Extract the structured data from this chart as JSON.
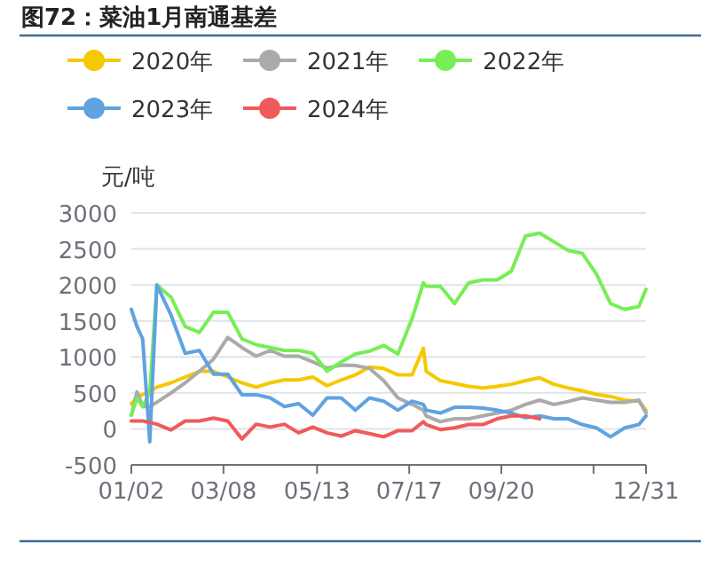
{
  "chart_data": {
    "type": "line",
    "title": "图72：菜油1月南通基差",
    "ylabel": "元/吨",
    "x": [
      "--01-02",
      "--01-06",
      "--01-10",
      "--01-15",
      "--01-20",
      "--01-30",
      "--02-09",
      "--02-19",
      "--03-01",
      "--03-11",
      "--03-21",
      "--03-31",
      "--04-10",
      "--04-20",
      "--04-30",
      "--05-10",
      "--05-20",
      "--05-30",
      "--06-09",
      "--06-19",
      "--06-29",
      "--07-09",
      "--07-19",
      "--07-27",
      "--07-29",
      "--08-08",
      "--08-18",
      "--08-28",
      "--09-07",
      "--09-17",
      "--09-27",
      "--10-07",
      "--10-17",
      "--10-27",
      "--11-06",
      "--11-16",
      "--11-26",
      "--12-06",
      "--12-16",
      "--12-26",
      "--12-31"
    ],
    "series": [
      {
        "name": "2020年",
        "color": "#f5c800",
        "values": [
          350,
          430,
          480,
          520,
          580,
          640,
          720,
          800,
          800,
          720,
          640,
          580,
          640,
          680,
          680,
          720,
          600,
          680,
          750,
          860,
          840,
          750,
          750,
          1120,
          800,
          670,
          630,
          590,
          570,
          590,
          620,
          670,
          710,
          620,
          570,
          530,
          480,
          450,
          400,
          385,
          260
        ]
      },
      {
        "name": "2021年",
        "color": "#aaaaaa",
        "values": [
          190,
          515,
          310,
          310,
          370,
          500,
          640,
          800,
          970,
          1270,
          1130,
          1010,
          1090,
          1010,
          1010,
          930,
          845,
          885,
          880,
          840,
          670,
          430,
          340,
          260,
          180,
          100,
          140,
          140,
          180,
          220,
          260,
          340,
          400,
          340,
          380,
          430,
          400,
          370,
          370,
          400,
          220
        ]
      },
      {
        "name": "2022年",
        "color": "#77ee55",
        "values": [
          190,
          430,
          310,
          500,
          2000,
          1830,
          1420,
          1340,
          1620,
          1620,
          1250,
          1170,
          1130,
          1090,
          1090,
          1050,
          800,
          930,
          1040,
          1080,
          1160,
          1040,
          1530,
          2030,
          1980,
          1980,
          1740,
          2030,
          2070,
          2070,
          2190,
          2680,
          2720,
          2600,
          2480,
          2440,
          2150,
          1740,
          1660,
          1700,
          1940
        ]
      },
      {
        "name": "2023年",
        "color": "#5fa3e0",
        "values": [
          1660,
          1420,
          1250,
          -180,
          2000,
          1580,
          1050,
          1090,
          760,
          760,
          475,
          475,
          430,
          310,
          350,
          190,
          430,
          430,
          260,
          430,
          385,
          260,
          385,
          340,
          260,
          220,
          300,
          300,
          290,
          260,
          220,
          155,
          180,
          140,
          140,
          60,
          15,
          -110,
          15,
          60,
          180
        ]
      },
      {
        "name": "2024年",
        "color": "#f05a5a",
        "values": [
          110,
          110,
          110,
          90,
          65,
          -15,
          110,
          110,
          150,
          110,
          -140,
          65,
          25,
          65,
          -55,
          25,
          -55,
          -100,
          -25,
          -65,
          -110,
          -25,
          -25,
          100,
          60,
          -10,
          15,
          60,
          60,
          140,
          180,
          180,
          140,
          null,
          null,
          null,
          null,
          null,
          null,
          null,
          null
        ]
      }
    ],
    "xlim": [
      "--01-02",
      "--12-31"
    ],
    "xticks": [
      {
        "value": "--01-02",
        "label": "01/02"
      },
      {
        "value": "--03-08",
        "label": "03/08"
      },
      {
        "value": "--05-13",
        "label": "05/13"
      },
      {
        "value": "--07-17",
        "label": "07/17"
      },
      {
        "value": "--09-20",
        "label": "09/20"
      },
      {
        "value": "--11-24",
        "label": null
      },
      {
        "value": "--12-31",
        "label": "12/31"
      }
    ],
    "ylim": [
      -500,
      3000
    ],
    "yticks": [
      -500,
      0,
      500,
      1000,
      1500,
      2000,
      2500,
      3000
    ],
    "grid": "y",
    "legend": "top"
  }
}
